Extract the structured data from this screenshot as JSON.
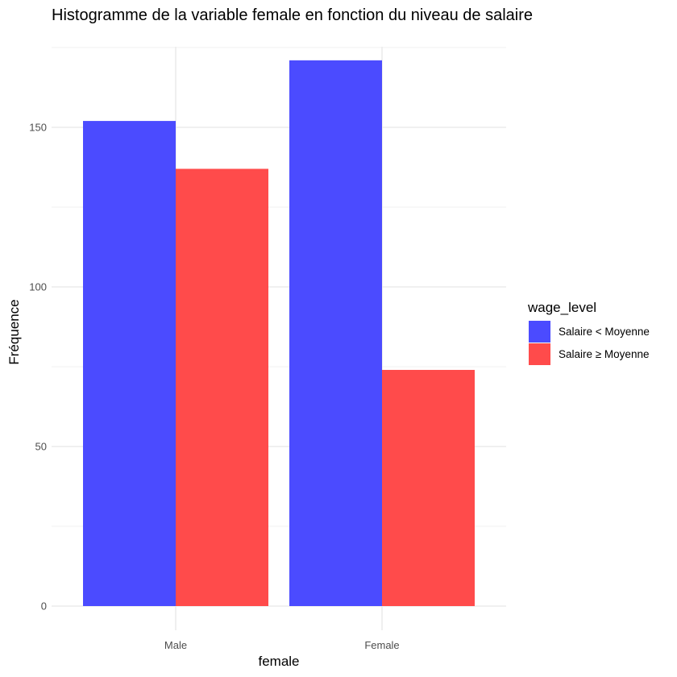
{
  "chart_data": {
    "type": "bar",
    "title": "Histogramme de la variable female en fonction du niveau de salaire",
    "xlabel": "female",
    "ylabel": "Fréquence",
    "categories": [
      "Male",
      "Female"
    ],
    "series": [
      {
        "name": "Salaire < Moyenne",
        "values": [
          152,
          171
        ],
        "color": "#4b4bff"
      },
      {
        "name": "Salaire ≥ Moyenne",
        "values": [
          137,
          74
        ],
        "color": "#ff4b4b"
      }
    ],
    "yticks": [
      0,
      50,
      100,
      150
    ],
    "ylim": [
      0,
      175
    ],
    "grid": true,
    "legend": {
      "title": "wage_level",
      "placement": "right"
    }
  }
}
